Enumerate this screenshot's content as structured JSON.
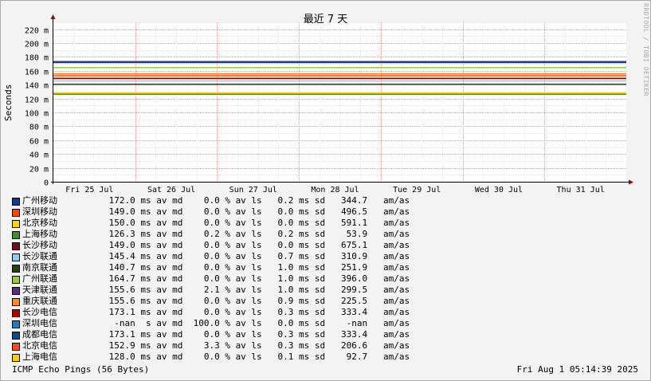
{
  "title": "最近 7 天",
  "side_text": "RRDTOOL / TOBI OETIKER",
  "footer_left": "ICMP Echo Pings (56 Bytes)",
  "footer_right": "Fri Aug  1 05:14:39 2025",
  "chart_data": {
    "type": "line",
    "title": "最近 7 天",
    "ylabel": "Seconds",
    "ylim": [
      0,
      0.23
    ],
    "yticks": [
      0,
      0.02,
      0.04,
      0.06,
      0.08,
      0.1,
      0.12,
      0.14,
      0.16,
      0.18,
      0.2,
      0.22
    ],
    "ytick_labels": [
      "0",
      "20 m",
      "40 m",
      "60 m",
      "80 m",
      "100 m",
      "120 m",
      "140 m",
      "160 m",
      "180 m",
      "200 m",
      "220 m"
    ],
    "x_ticks": [
      "Fri 25 Jul",
      "Sat 26 Jul",
      "Sun 27 Jul",
      "Mon 28 Jul",
      "Tue 29 Jul",
      "Wed 30 Jul",
      "Thu 31 Jul"
    ],
    "grid": true,
    "legend_position": "bottom",
    "series": [
      {
        "name": "广州移动",
        "color": "#0b3d91",
        "avg": "172.0 ms av md",
        "loss": "0.0 % av ls",
        "sd": "0.2 ms sd",
        "amas": "344.7",
        "value": 0.172
      },
      {
        "name": "深圳移动",
        "color": "#ff4500",
        "avg": "149.0 ms av md",
        "loss": "0.0 % av ls",
        "sd": "0.0 ms sd",
        "amas": "496.5",
        "value": 0.149
      },
      {
        "name": "北京移动",
        "color": "#ffd700",
        "avg": "150.0 ms av md",
        "loss": "0.0 % av ls",
        "sd": "0.0 ms sd",
        "amas": "591.1",
        "value": 0.15
      },
      {
        "name": "上海移动",
        "color": "#3f8f2f",
        "avg": "126.3 ms av md",
        "loss": "0.2 % av ls",
        "sd": "0.2 ms sd",
        "amas": "53.9",
        "value": 0.1263
      },
      {
        "name": "长沙移动",
        "color": "#7a0a1e",
        "avg": "149.0 ms av md",
        "loss": "0.0 % av ls",
        "sd": "0.0 ms sd",
        "amas": "675.1",
        "value": 0.149
      },
      {
        "name": "长沙联通",
        "color": "#8ecdf5",
        "avg": "145.4 ms av md",
        "loss": "0.0 % av ls",
        "sd": "0.7 ms sd",
        "amas": "310.9",
        "value": 0.1454
      },
      {
        "name": "南京联通",
        "color": "#2e3f0f",
        "avg": "140.7 ms av md",
        "loss": "0.0 % av ls",
        "sd": "1.0 ms sd",
        "amas": "251.9",
        "value": 0.1407
      },
      {
        "name": "广州联通",
        "color": "#9acd32",
        "avg": "164.7 ms av md",
        "loss": "0.0 % av ls",
        "sd": "1.0 ms sd",
        "amas": "396.0",
        "value": 0.1647
      },
      {
        "name": "天津联通",
        "color": "#5a2d82",
        "avg": "155.6 ms av md",
        "loss": "2.1 % av ls",
        "sd": "1.0 ms sd",
        "amas": "299.5",
        "value": 0.1556
      },
      {
        "name": "重庆联通",
        "color": "#ff8c1a",
        "avg": "155.6 ms av md",
        "loss": "0.0 % av ls",
        "sd": "0.9 ms sd",
        "amas": "225.5",
        "value": 0.1556
      },
      {
        "name": "长沙电信",
        "color": "#b00000",
        "avg": "173.1 ms av md",
        "loss": "0.0 % av ls",
        "sd": "0.3 ms sd",
        "amas": "333.4",
        "value": 0.1731
      },
      {
        "name": "深圳电信",
        "color": "#1e7fc8",
        "avg": "-nan  s av md",
        "loss": "100.0 % av ls",
        "sd": "0.0 ms sd",
        "amas": "-nan",
        "value": null
      },
      {
        "name": "成都电信",
        "color": "#0a4a8a",
        "avg": "173.1 ms av md",
        "loss": "0.0 % av ls",
        "sd": "0.3 ms sd",
        "amas": "333.4",
        "value": 0.1731
      },
      {
        "name": "北京电信",
        "color": "#ff4a1a",
        "avg": "152.9 ms av md",
        "loss": "3.3 % av ls",
        "sd": "0.3 ms sd",
        "amas": "206.6",
        "value": 0.1529
      },
      {
        "name": "上海电信",
        "color": "#ffcc00",
        "avg": "128.0 ms av md",
        "loss": "0.0 % av ls",
        "sd": "0.1 ms sd",
        "amas": "92.7",
        "value": 0.128
      }
    ]
  }
}
